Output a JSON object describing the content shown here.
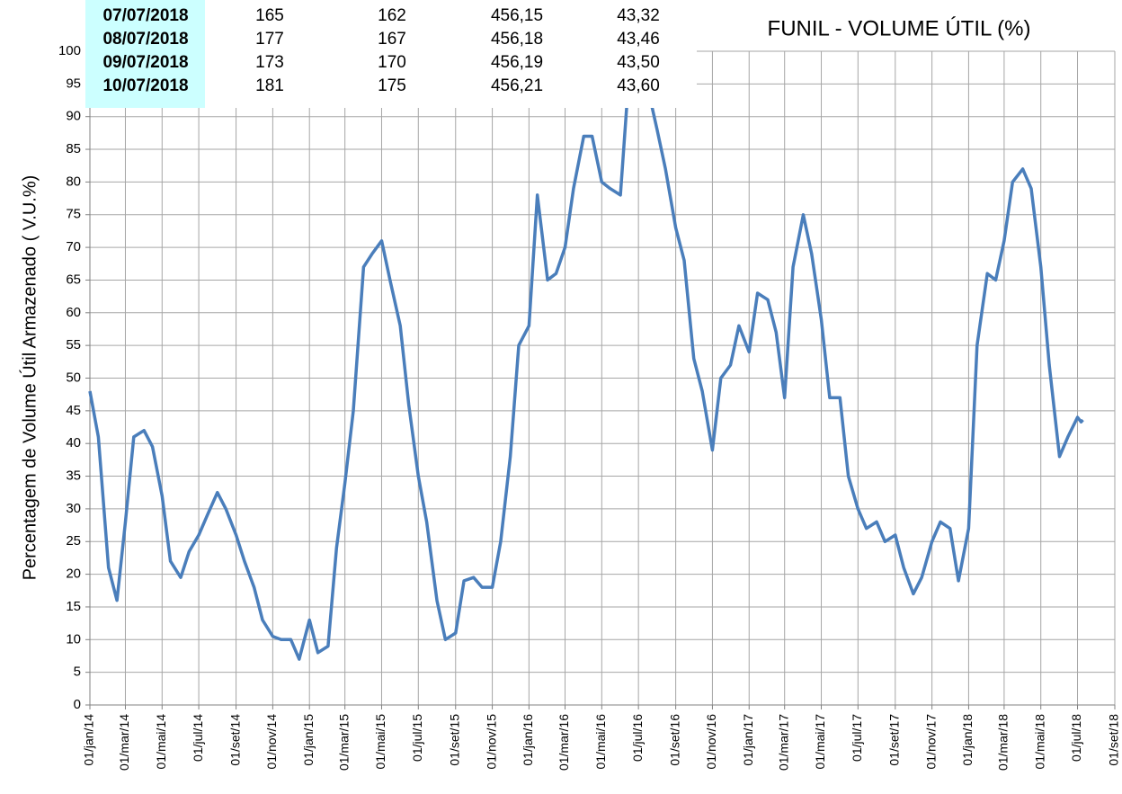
{
  "chart_data": {
    "type": "line",
    "title": "FUNIL - VOLUME ÚTIL (%)",
    "y_label": "Percentagem de Volume Útil Armazenado ( V.U.%)",
    "color": "#4a7ebb",
    "grid": true,
    "x": [
      "2014-01-01",
      "2014-01-15",
      "2014-02-01",
      "2014-02-15",
      "2014-03-01",
      "2014-03-15",
      "2014-04-01",
      "2014-04-15",
      "2014-05-01",
      "2014-05-15",
      "2014-06-01",
      "2014-06-15",
      "2014-07-01",
      "2014-07-15",
      "2014-08-01",
      "2014-08-15",
      "2014-09-01",
      "2014-09-15",
      "2014-10-01",
      "2014-10-15",
      "2014-11-01",
      "2014-11-15",
      "2014-12-01",
      "2014-12-15",
      "2015-01-01",
      "2015-01-15",
      "2015-02-01",
      "2015-02-15",
      "2015-03-01",
      "2015-03-15",
      "2015-04-01",
      "2015-04-15",
      "2015-05-01",
      "2015-05-15",
      "2015-06-01",
      "2015-06-15",
      "2015-07-01",
      "2015-07-15",
      "2015-08-01",
      "2015-08-15",
      "2015-09-01",
      "2015-09-15",
      "2015-10-01",
      "2015-10-15",
      "2015-11-01",
      "2015-11-15",
      "2015-12-01",
      "2015-12-15",
      "2016-01-01",
      "2016-01-15",
      "2016-02-01",
      "2016-02-15",
      "2016-03-01",
      "2016-03-15",
      "2016-04-01",
      "2016-04-15",
      "2016-05-01",
      "2016-05-15",
      "2016-06-01",
      "2016-06-15",
      "2016-07-01",
      "2016-07-15",
      "2016-08-01",
      "2016-08-15",
      "2016-09-01",
      "2016-09-15",
      "2016-10-01",
      "2016-10-15",
      "2016-11-01",
      "2016-11-15",
      "2016-12-01",
      "2016-12-15",
      "2017-01-01",
      "2017-01-15",
      "2017-02-01",
      "2017-02-15",
      "2017-03-01",
      "2017-03-15",
      "2017-04-01",
      "2017-04-15",
      "2017-05-01",
      "2017-05-15",
      "2017-06-01",
      "2017-06-15",
      "2017-07-01",
      "2017-07-15",
      "2017-08-01",
      "2017-08-15",
      "2017-09-01",
      "2017-09-15",
      "2017-10-01",
      "2017-10-15",
      "2017-11-01",
      "2017-11-15",
      "2017-12-01",
      "2017-12-15",
      "2018-01-01",
      "2018-01-15",
      "2018-02-01",
      "2018-02-15",
      "2018-03-01",
      "2018-03-15",
      "2018-04-01",
      "2018-04-15",
      "2018-05-01",
      "2018-05-15",
      "2018-06-01",
      "2018-06-15",
      "2018-07-01",
      "2018-07-07",
      "2018-07-10"
    ],
    "values": [
      48,
      41,
      21,
      16,
      28,
      41,
      42,
      39.5,
      32,
      22,
      19.5,
      23.5,
      26,
      29,
      32.5,
      30,
      26,
      22,
      18,
      13,
      10.5,
      10,
      10,
      7,
      13,
      8,
      9,
      24,
      34,
      45,
      67,
      69,
      71,
      65,
      58,
      46,
      35,
      28,
      16,
      10,
      11,
      19,
      19.5,
      18,
      18,
      25,
      38,
      55,
      58,
      78,
      65,
      66,
      70,
      79,
      87,
      87,
      80,
      79,
      78,
      96,
      98,
      95,
      88,
      82,
      73,
      68,
      53,
      48,
      39,
      50,
      52,
      58,
      54,
      63,
      62,
      57,
      47,
      67,
      75,
      69,
      59,
      47,
      47,
      35,
      30,
      27,
      28,
      25,
      26,
      21,
      17,
      19.5,
      25,
      28,
      27,
      19,
      27,
      55,
      66,
      65,
      71,
      80,
      82,
      79,
      67,
      52,
      38,
      41,
      44,
      43.3,
      43.6
    ],
    "xlim": [
      "2014-01-01",
      "2018-09-01"
    ],
    "xticks": [
      {
        "value": "2014-01-01",
        "label": "01/jan/14"
      },
      {
        "value": "2014-03-01",
        "label": "01/mar/14"
      },
      {
        "value": "2014-05-01",
        "label": "01/mai/14"
      },
      {
        "value": "2014-07-01",
        "label": "01/jul/14"
      },
      {
        "value": "2014-09-01",
        "label": "01/set/14"
      },
      {
        "value": "2014-11-01",
        "label": "01/nov/14"
      },
      {
        "value": "2015-01-01",
        "label": "01/jan/15"
      },
      {
        "value": "2015-03-01",
        "label": "01/mar/15"
      },
      {
        "value": "2015-05-01",
        "label": "01/mai/15"
      },
      {
        "value": "2015-07-01",
        "label": "01/jul/15"
      },
      {
        "value": "2015-09-01",
        "label": "01/set/15"
      },
      {
        "value": "2015-11-01",
        "label": "01/nov/15"
      },
      {
        "value": "2016-01-01",
        "label": "01/jan/16"
      },
      {
        "value": "2016-03-01",
        "label": "01/mar/16"
      },
      {
        "value": "2016-05-01",
        "label": "01/mai/16"
      },
      {
        "value": "2016-07-01",
        "label": "01/jul/16"
      },
      {
        "value": "2016-09-01",
        "label": "01/set/16"
      },
      {
        "value": "2016-11-01",
        "label": "01/nov/16"
      },
      {
        "value": "2017-01-01",
        "label": "01/jan/17"
      },
      {
        "value": "2017-03-01",
        "label": "01/mar/17"
      },
      {
        "value": "2017-05-01",
        "label": "01/mai/17"
      },
      {
        "value": "2017-07-01",
        "label": "01/jul/17"
      },
      {
        "value": "2017-09-01",
        "label": "01/set/17"
      },
      {
        "value": "2017-11-01",
        "label": "01/nov/17"
      },
      {
        "value": "2018-01-01",
        "label": "01/jan/18"
      },
      {
        "value": "2018-03-01",
        "label": "01/mar/18"
      },
      {
        "value": "2018-05-01",
        "label": "01/mai/18"
      },
      {
        "value": "2018-07-01",
        "label": "01/jul/18"
      },
      {
        "value": "2018-09-01",
        "label": "01/set/18"
      }
    ],
    "ylim": [
      0,
      100
    ],
    "yticks": [
      0,
      5,
      10,
      15,
      20,
      25,
      30,
      35,
      40,
      45,
      50,
      55,
      60,
      65,
      70,
      75,
      80,
      85,
      90,
      95,
      100
    ]
  },
  "table": {
    "rows": [
      [
        "07/07/2018",
        "165",
        "162",
        "456,15",
        "43,32"
      ],
      [
        "08/07/2018",
        "177",
        "167",
        "456,18",
        "43,46"
      ],
      [
        "09/07/2018",
        "173",
        "170",
        "456,19",
        "43,50"
      ],
      [
        "10/07/2018",
        "181",
        "175",
        "456,21",
        "43,60"
      ]
    ]
  }
}
